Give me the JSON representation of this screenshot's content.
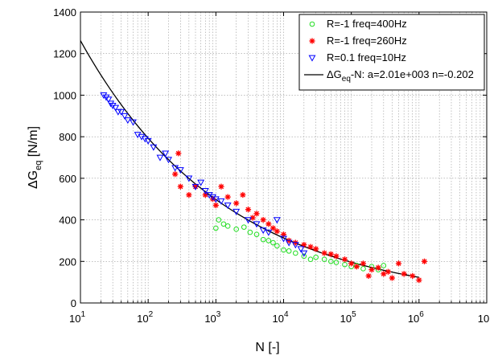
{
  "chart_data": {
    "type": "scatter",
    "title": "",
    "xlabel": "N [-]",
    "ylabel_main": "ΔG",
    "ylabel_sub": "eq",
    "ylabel_unit": " [N/m]",
    "x_scale": "log",
    "xlim": [
      10,
      10000000
    ],
    "ylim": [
      0,
      1400
    ],
    "x_ticks": [
      {
        "value": 10,
        "base": "10",
        "exp": "1"
      },
      {
        "value": 100,
        "base": "10",
        "exp": "2"
      },
      {
        "value": 1000,
        "base": "10",
        "exp": "3"
      },
      {
        "value": 10000,
        "base": "10",
        "exp": "4"
      },
      {
        "value": 100000,
        "base": "10",
        "exp": "5"
      },
      {
        "value": 1000000,
        "base": "10",
        "exp": "6"
      },
      {
        "value": 10000000,
        "base": "10",
        "exp": ""
      }
    ],
    "y_ticks": [
      "0",
      "200",
      "400",
      "600",
      "800",
      "1000",
      "1200",
      "1400"
    ],
    "grid": true,
    "legend_position": "top-right",
    "series": [
      {
        "name": "R=-1 freq=400Hz",
        "marker": "circle",
        "color": "#22dd22",
        "points": [
          [
            1000,
            360
          ],
          [
            1100,
            400
          ],
          [
            1300,
            380
          ],
          [
            1500,
            370
          ],
          [
            2000,
            355
          ],
          [
            2600,
            365
          ],
          [
            3200,
            340
          ],
          [
            4000,
            330
          ],
          [
            5000,
            305
          ],
          [
            6000,
            300
          ],
          [
            7000,
            290
          ],
          [
            8000,
            275
          ],
          [
            10000,
            255
          ],
          [
            12000,
            250
          ],
          [
            15000,
            240
          ],
          [
            20000,
            225
          ],
          [
            25000,
            210
          ],
          [
            30000,
            220
          ],
          [
            40000,
            210
          ],
          [
            50000,
            200
          ],
          [
            60000,
            195
          ],
          [
            80000,
            185
          ],
          [
            100000,
            175
          ],
          [
            120000,
            180
          ],
          [
            150000,
            165
          ],
          [
            200000,
            175
          ],
          [
            250000,
            160
          ],
          [
            300000,
            180
          ]
        ]
      },
      {
        "name": "R=-1 freq=260Hz",
        "marker": "star",
        "color": "#ff0000",
        "points": [
          [
            250,
            620
          ],
          [
            280,
            720
          ],
          [
            300,
            560
          ],
          [
            400,
            520
          ],
          [
            500,
            560
          ],
          [
            700,
            520
          ],
          [
            900,
            500
          ],
          [
            1000,
            470
          ],
          [
            1200,
            560
          ],
          [
            1500,
            510
          ],
          [
            2000,
            480
          ],
          [
            2500,
            520
          ],
          [
            3000,
            450
          ],
          [
            3500,
            410
          ],
          [
            4000,
            430
          ],
          [
            5000,
            400
          ],
          [
            6000,
            380
          ],
          [
            7000,
            360
          ],
          [
            8000,
            345
          ],
          [
            10000,
            330
          ],
          [
            12000,
            300
          ],
          [
            15000,
            290
          ],
          [
            20000,
            280
          ],
          [
            25000,
            270
          ],
          [
            30000,
            260
          ],
          [
            40000,
            240
          ],
          [
            50000,
            235
          ],
          [
            60000,
            225
          ],
          [
            80000,
            210
          ],
          [
            100000,
            190
          ],
          [
            120000,
            175
          ],
          [
            150000,
            190
          ],
          [
            180000,
            130
          ],
          [
            200000,
            160
          ],
          [
            250000,
            170
          ],
          [
            300000,
            140
          ],
          [
            350000,
            150
          ],
          [
            400000,
            120
          ],
          [
            500000,
            190
          ],
          [
            600000,
            140
          ],
          [
            800000,
            130
          ],
          [
            1000000,
            110
          ],
          [
            1200000,
            200
          ]
        ]
      },
      {
        "name": "R=0.1 freq=10Hz",
        "marker": "triangle-down",
        "color": "#0000ff",
        "points": [
          [
            22,
            1000
          ],
          [
            24,
            990
          ],
          [
            26,
            980
          ],
          [
            28,
            960
          ],
          [
            30,
            950
          ],
          [
            33,
            940
          ],
          [
            36,
            920
          ],
          [
            40,
            920
          ],
          [
            45,
            900
          ],
          [
            50,
            880
          ],
          [
            60,
            870
          ],
          [
            70,
            810
          ],
          [
            80,
            800
          ],
          [
            90,
            790
          ],
          [
            100,
            780
          ],
          [
            120,
            750
          ],
          [
            150,
            700
          ],
          [
            180,
            720
          ],
          [
            200,
            690
          ],
          [
            250,
            650
          ],
          [
            300,
            640
          ],
          [
            400,
            600
          ],
          [
            500,
            560
          ],
          [
            600,
            580
          ],
          [
            700,
            540
          ],
          [
            800,
            520
          ],
          [
            900,
            510
          ],
          [
            1000,
            500
          ],
          [
            1200,
            490
          ],
          [
            1500,
            470
          ],
          [
            2000,
            440
          ],
          [
            3000,
            400
          ],
          [
            4000,
            380
          ],
          [
            5000,
            350
          ],
          [
            6000,
            340
          ],
          [
            8000,
            400
          ],
          [
            10000,
            310
          ],
          [
            12000,
            290
          ],
          [
            15000,
            280
          ],
          [
            18000,
            260
          ],
          [
            20000,
            240
          ]
        ]
      }
    ],
    "fit": {
      "name_main": "ΔG",
      "name_sub": "eq",
      "name_rest": "-N: a=2.01e+003 n=-0.202",
      "color": "#000000",
      "a": 2010,
      "n": -0.202,
      "x_range": [
        10,
        1000000
      ]
    }
  }
}
